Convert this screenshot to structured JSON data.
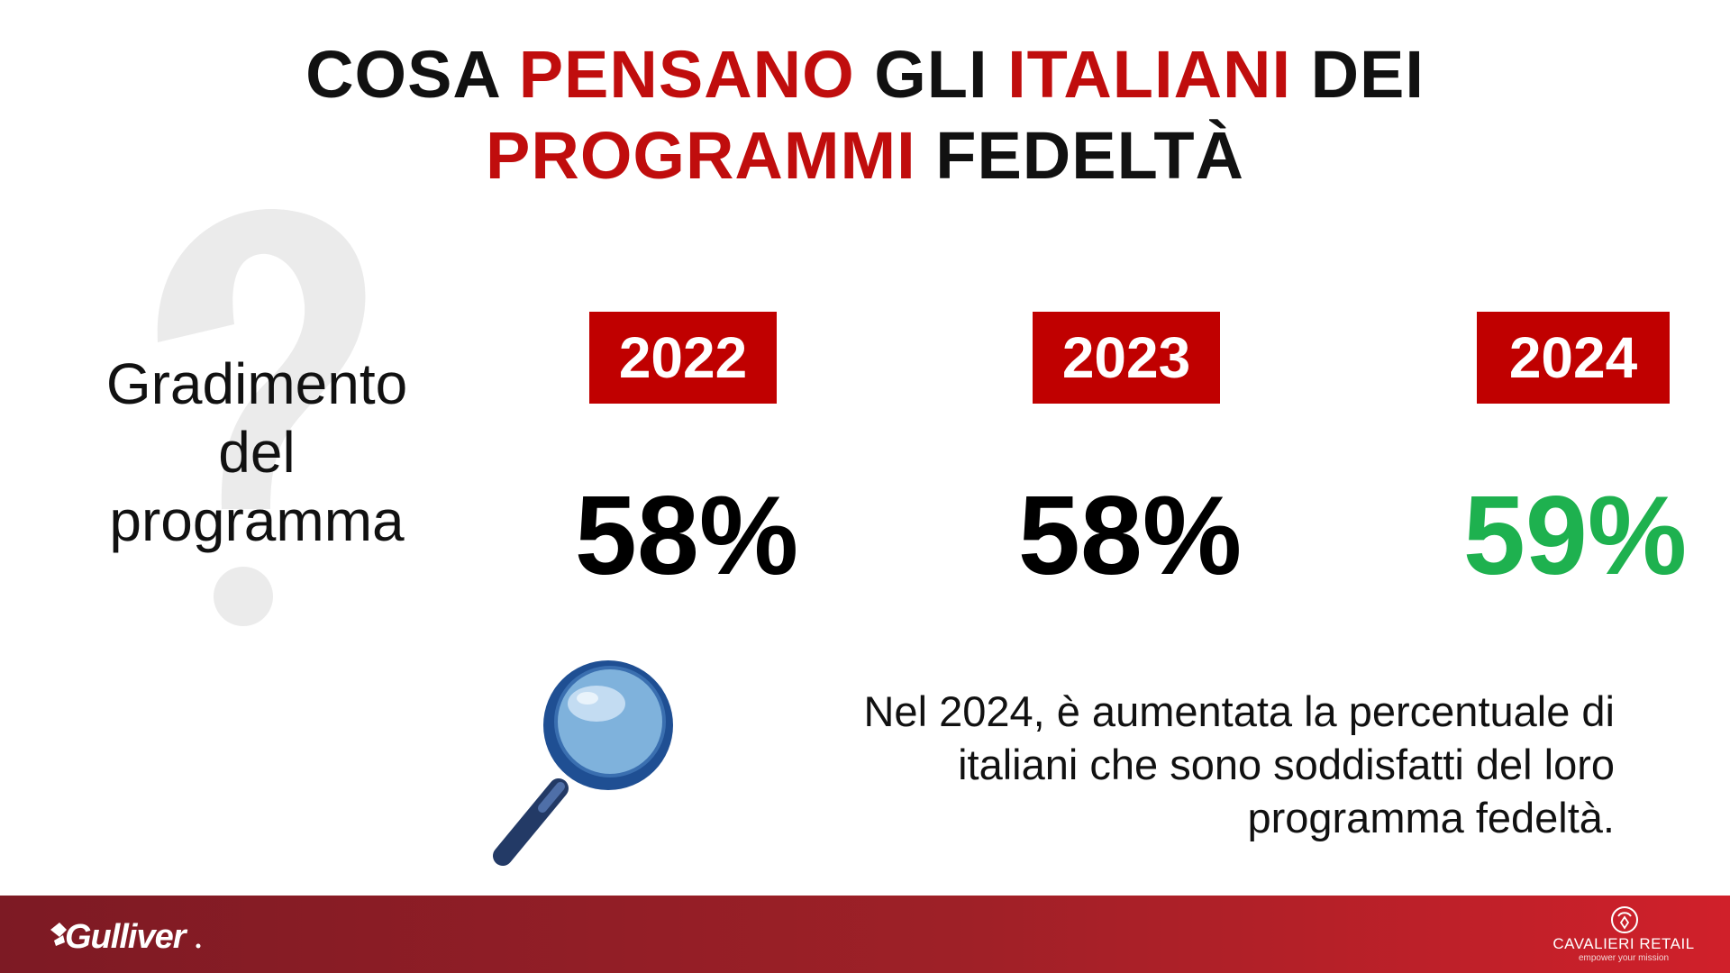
{
  "title": {
    "w1": "COSA",
    "w2": "PENSANO",
    "w3": "GLI",
    "w4": "ITALIANI",
    "w5": "DEI",
    "w6": "PROGRAMMI",
    "w7": "FEDELTÀ"
  },
  "label": {
    "line1": "Gradimento",
    "line2": "del",
    "line3": "programma"
  },
  "years": [
    {
      "year": "2022",
      "value": "58%"
    },
    {
      "year": "2023",
      "value": "58%"
    },
    {
      "year": "2024",
      "value": "59%"
    }
  ],
  "note": {
    "line1": "Nel 2024, è aumentata la percentuale di",
    "line2": "italiani che sono soddisfatti del loro",
    "line3": "programma fedeltà."
  },
  "footer": {
    "left_logo": "Gulliver",
    "right_logo_name": "CAVALIERI RETAIL",
    "right_logo_tagline": "empower your mission"
  },
  "colors": {
    "accent_red": "#c00000",
    "highlight_green": "#1eb14f",
    "footer_start": "#7d1a24",
    "footer_end": "#d0202a"
  },
  "icons": [
    "question-mark-icon",
    "magnifying-glass-icon",
    "gulliver-logo",
    "cavalieri-retail-icon"
  ]
}
